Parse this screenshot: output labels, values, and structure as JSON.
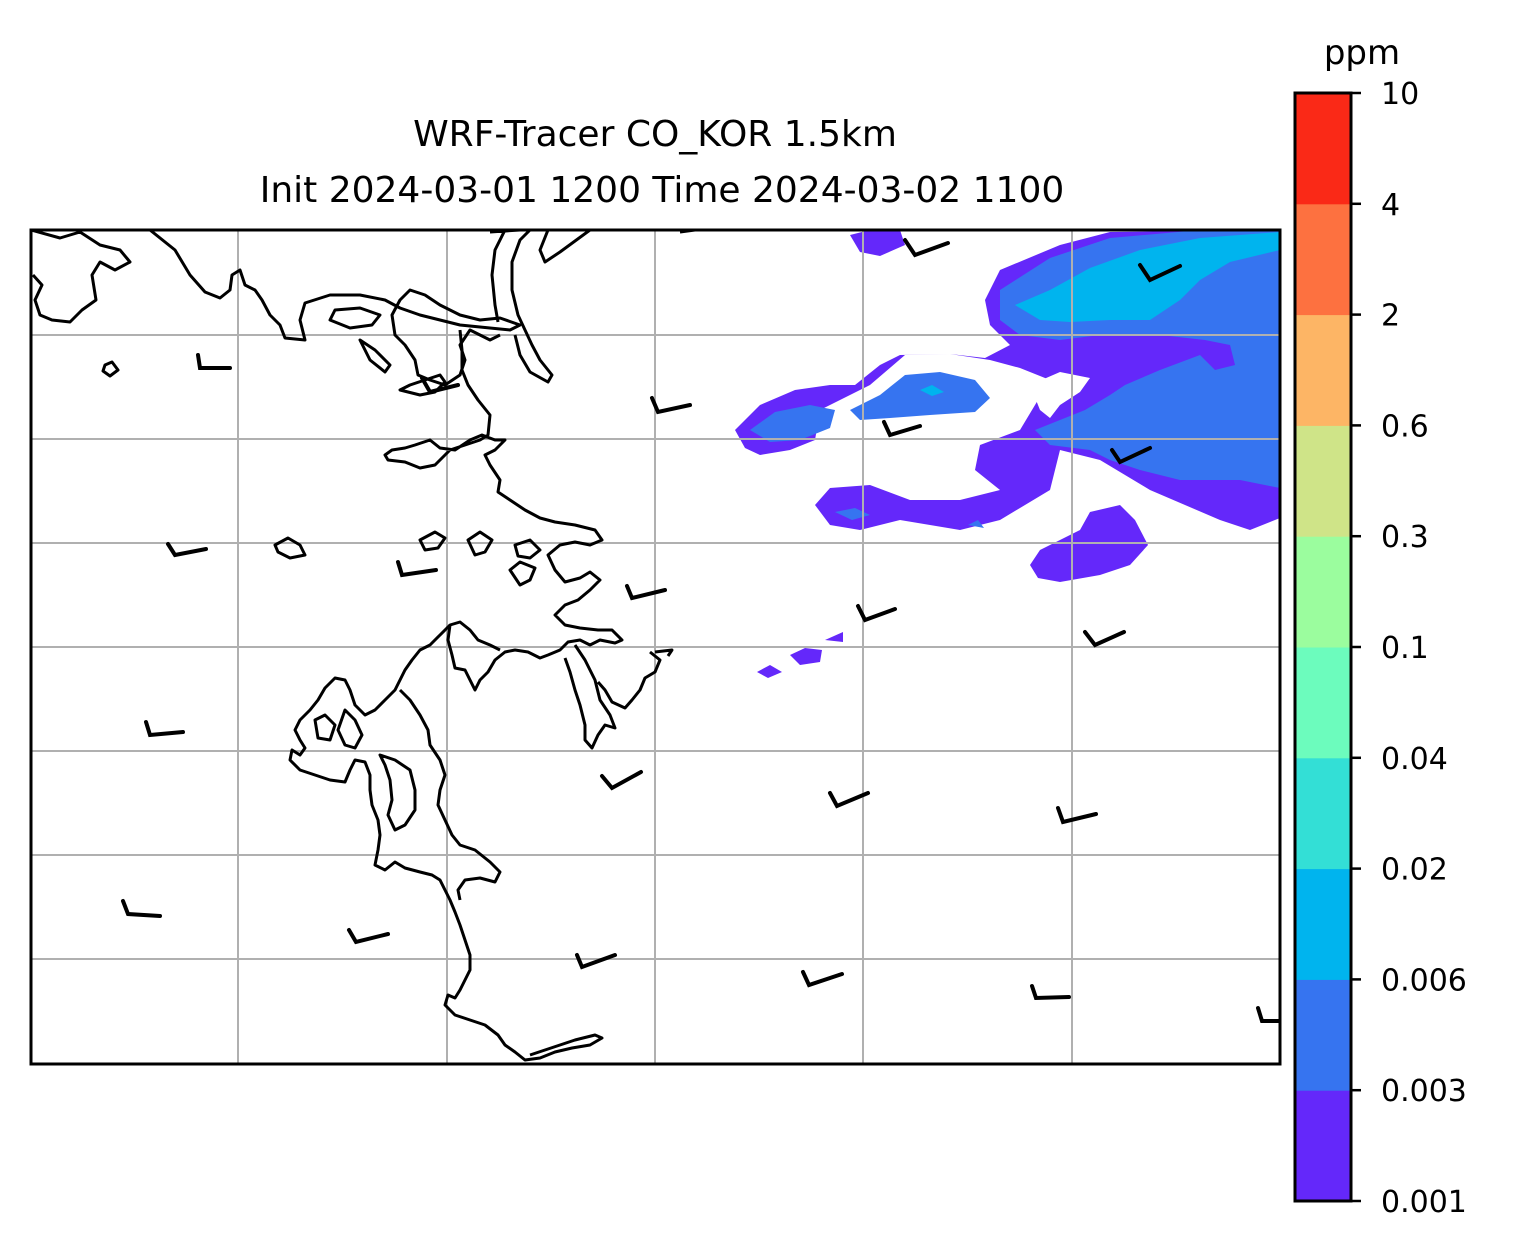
{
  "figure": {
    "title_line1": "WRF-Tracer CO_KOR 1.5km",
    "title_line2": "Init 2024-03-01 1200 Time 2024-03-02 1100"
  },
  "colorbar": {
    "unit": "ppm",
    "levels": [
      "0.001",
      "0.003",
      "0.006",
      "0.02",
      "0.04",
      "0.1",
      "0.3",
      "0.6",
      "2",
      "4",
      "10"
    ],
    "colors": [
      "#6428fa",
      "#3674f0",
      "#00b4ee",
      "#33dfd6",
      "#6cfcbd",
      "#9bfd9e",
      "#cfe488",
      "#fdb565",
      "#fd7140",
      "#fa2917"
    ]
  },
  "map": {
    "gridline_color": "#b0b0b0",
    "coastline_color": "#000000",
    "grid_visible": true
  }
}
